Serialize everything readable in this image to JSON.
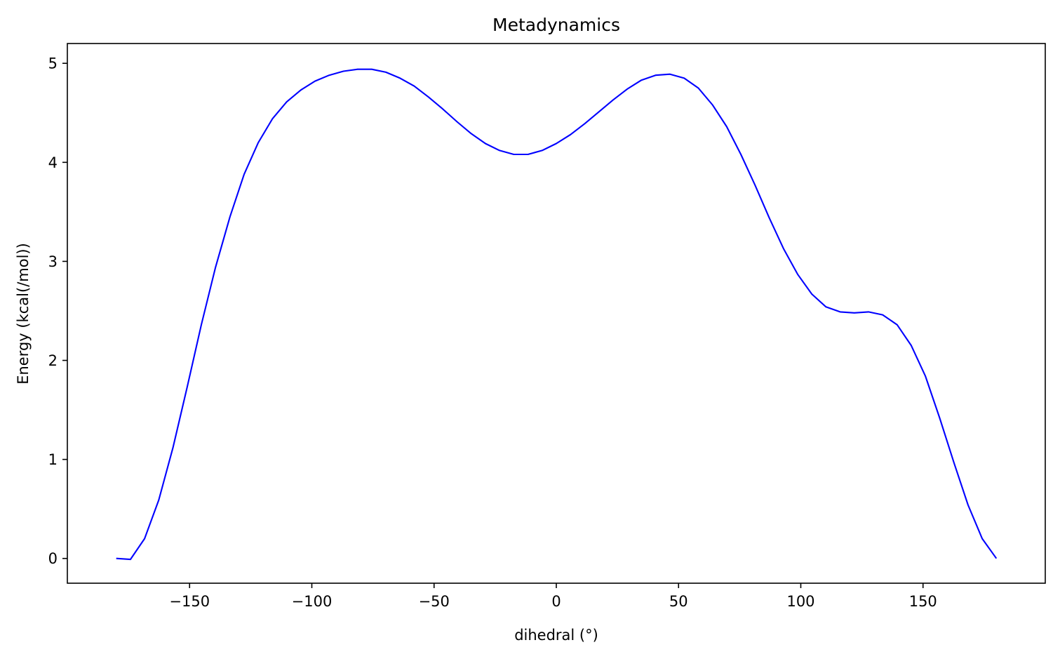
{
  "chart_data": {
    "type": "line",
    "title": "Metadynamics",
    "xlabel": "dihedral (°)",
    "ylabel": "Energy (kcal(/mol))",
    "xlim": [
      -200,
      200
    ],
    "ylim": [
      -0.25,
      5.2
    ],
    "xticks": [
      -150,
      -100,
      -50,
      0,
      50,
      100,
      150
    ],
    "xtick_labels": [
      "−150",
      "−100",
      "−50",
      "0",
      "50",
      "100",
      "150"
    ],
    "yticks": [
      0,
      1,
      2,
      3,
      4,
      5
    ],
    "ytick_labels": [
      "0",
      "1",
      "2",
      "3",
      "4",
      "5"
    ],
    "grid": false,
    "series": [
      {
        "color": "#0000ff",
        "x": [
          -180,
          -174.2,
          -168.4,
          -162.6,
          -156.8,
          -151,
          -145.2,
          -139.4,
          -133.5,
          -127.7,
          -121.9,
          -116.1,
          -110.3,
          -104.5,
          -98.7,
          -92.9,
          -87.1,
          -81.3,
          -75.5,
          -69.7,
          -63.9,
          -58.1,
          -52.3,
          -46.5,
          -40.6,
          -34.8,
          -29,
          -23.2,
          -17.4,
          -11.6,
          -5.8,
          0,
          5.8,
          11.6,
          17.4,
          23.2,
          29,
          34.8,
          40.6,
          46.5,
          52.3,
          58.1,
          63.9,
          69.7,
          75.5,
          81.3,
          87.1,
          92.9,
          98.7,
          104.5,
          110.3,
          116.1,
          121.9,
          127.7,
          133.5,
          139.4,
          145.2,
          151,
          156.8,
          162.6,
          168.4,
          174.2,
          180
        ],
        "y": [
          0.0,
          -0.01,
          0.2,
          0.59,
          1.12,
          1.73,
          2.36,
          2.94,
          3.45,
          3.88,
          4.2,
          4.44,
          4.61,
          4.73,
          4.82,
          4.88,
          4.92,
          4.94,
          4.94,
          4.91,
          4.85,
          4.77,
          4.66,
          4.54,
          4.41,
          4.29,
          4.19,
          4.12,
          4.08,
          4.08,
          4.12,
          4.19,
          4.28,
          4.39,
          4.51,
          4.63,
          4.74,
          4.83,
          4.88,
          4.89,
          4.85,
          4.75,
          4.58,
          4.36,
          4.08,
          3.77,
          3.44,
          3.13,
          2.87,
          2.67,
          2.54,
          2.49,
          2.48,
          2.49,
          2.46,
          2.36,
          2.15,
          1.84,
          1.42,
          0.97,
          0.54,
          0.2,
          0.0
        ]
      }
    ]
  }
}
